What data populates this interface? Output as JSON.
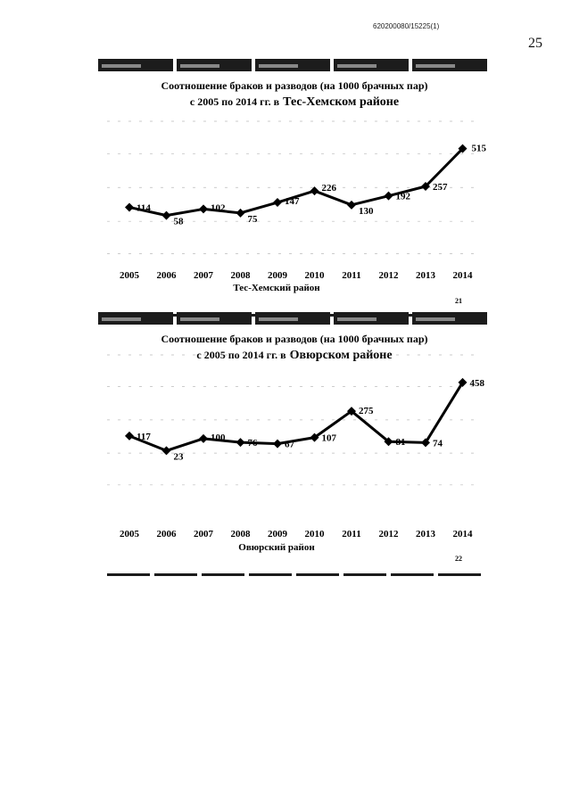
{
  "document": {
    "doc_id": "620200080/15225(1)",
    "page_number": "25"
  },
  "chart_data": [
    {
      "type": "line",
      "title_line1": "Соотношение браков и разводов (на 1000 брачных пар)",
      "title_line2_prefix": "с 2005 по 2014 гг.  в",
      "title_line2_place": "Тес-Хемском районе",
      "xlabel": "Тес-Хемский район",
      "figure_number": "21",
      "categories": [
        "2005",
        "2006",
        "2007",
        "2008",
        "2009",
        "2010",
        "2011",
        "2012",
        "2013",
        "2014"
      ],
      "series": [
        {
          "values": [
            114,
            58,
            102,
            75,
            147,
            226,
            130,
            192,
            257,
            515
          ]
        }
      ],
      "ylim": [
        -60,
        580
      ],
      "grid": false,
      "legend": "none",
      "color": "#000000"
    },
    {
      "type": "line",
      "title_line1": "Соотношение браков и разводов (на 1000 брачных пар)",
      "title_line2_prefix": "с 2005 по 2014 гг.  в",
      "title_line2_place": "Овюрском районе",
      "xlabel": "Овюрский район",
      "figure_number": "22",
      "categories": [
        "2005",
        "2006",
        "2007",
        "2008",
        "2009",
        "2010",
        "2011",
        "2012",
        "2013",
        "2014"
      ],
      "series": [
        {
          "values": [
            117,
            23,
            100,
            76,
            67,
            107,
            275,
            81,
            74,
            458
          ]
        }
      ],
      "ylim": [
        -60,
        520
      ],
      "grid": false,
      "legend": "none",
      "color": "#000000"
    }
  ]
}
